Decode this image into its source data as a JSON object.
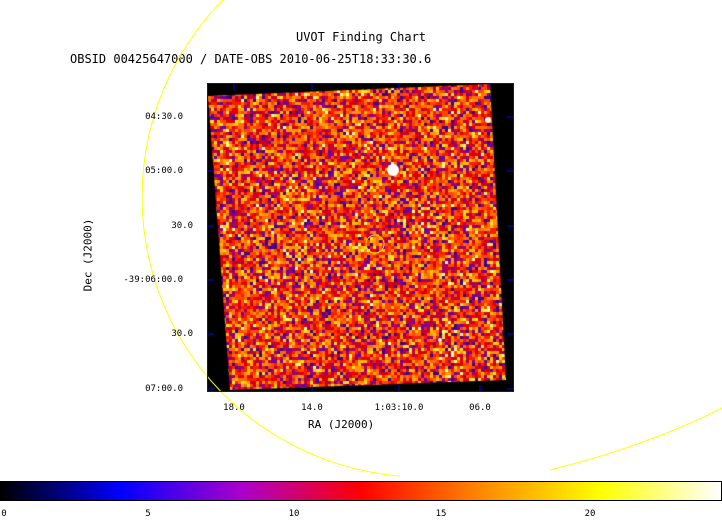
{
  "header": {
    "title": "UVOT Finding Chart",
    "subtitle": "OBSID 00425647000 / DATE-OBS 2010-06-25T18:33:30.6"
  },
  "axes": {
    "dec_label": "Dec (J2000)",
    "ra_label": "RA (J2000)",
    "dec_ticks": [
      "04:30.0",
      "05:00.0",
      "30.0",
      "-39:06:00.0",
      "30.0",
      "07:00.0"
    ],
    "ra_ticks": [
      "18.0",
      "14.0",
      "1:03:10.0",
      "06.0"
    ]
  },
  "colorbar": {
    "ticks": [
      "0",
      "5",
      "10",
      "15",
      "20"
    ],
    "colors": [
      "#000000",
      "#0000ff",
      "#aa00cc",
      "#ff0000",
      "#ff8800",
      "#ffff00",
      "#ffffff"
    ]
  },
  "image": {
    "background_color": "#000000",
    "frame_color": "#0000ff",
    "circle_color": "#ffff00",
    "source_circle_color": "#ffcc00"
  }
}
